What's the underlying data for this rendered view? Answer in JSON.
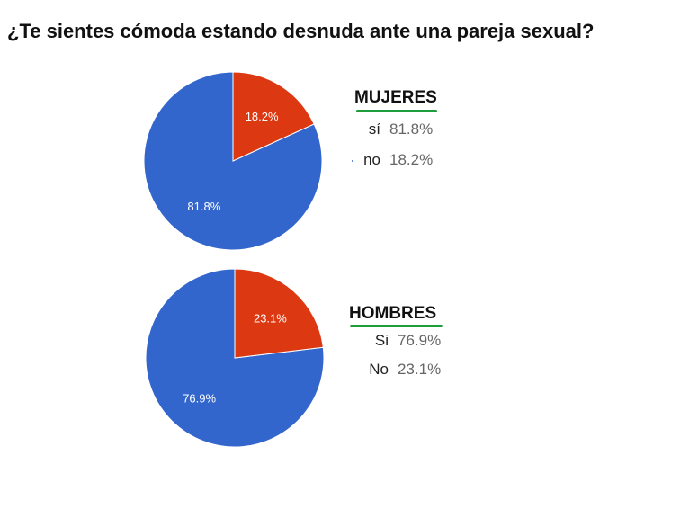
{
  "title": "¿Te sientes cómoda estando desnuda ante una pareja sexual?",
  "colors": {
    "primary": "#3366cc",
    "secondary": "#dc3912",
    "underline": "#1e9e3a"
  },
  "chart_data": [
    {
      "type": "pie",
      "title": "MUJERES",
      "categories": [
        "sí",
        "no"
      ],
      "values": [
        81.8,
        18.2
      ],
      "labels": [
        "81.8%",
        "18.2%"
      ]
    },
    {
      "type": "pie",
      "title": "HOMBRES",
      "categories": [
        "Si",
        "No"
      ],
      "values": [
        76.9,
        23.1
      ],
      "labels": [
        "76.9%",
        "23.1%"
      ]
    }
  ]
}
